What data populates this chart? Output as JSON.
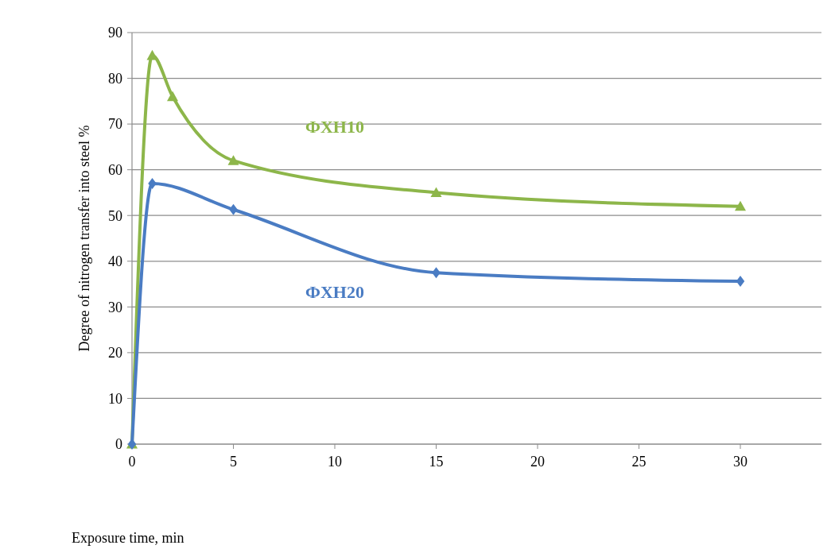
{
  "chart_data": {
    "type": "line",
    "xlabel": "Exposure time, min",
    "ylabel": "Degree of nitrogen transfer into steel %",
    "xlim": [
      0,
      34
    ],
    "xticks": [
      0,
      5,
      10,
      15,
      20,
      25,
      30
    ],
    "ylim": [
      0,
      90
    ],
    "yticks": [
      0,
      10,
      20,
      30,
      40,
      50,
      60,
      70,
      80,
      90
    ],
    "grid": "y",
    "series": [
      {
        "name": "ФХН10",
        "color": "#8db64a",
        "marker": "triangle",
        "x": [
          0,
          1,
          2,
          5,
          15,
          30
        ],
        "values": [
          0,
          85,
          76,
          62,
          55,
          52
        ]
      },
      {
        "name": "ФХН20",
        "color": "#4a7cc3",
        "marker": "diamond",
        "x": [
          0,
          1,
          5,
          15,
          30
        ],
        "values": [
          0,
          57,
          51.3,
          37.5,
          35.6
        ]
      }
    ]
  }
}
